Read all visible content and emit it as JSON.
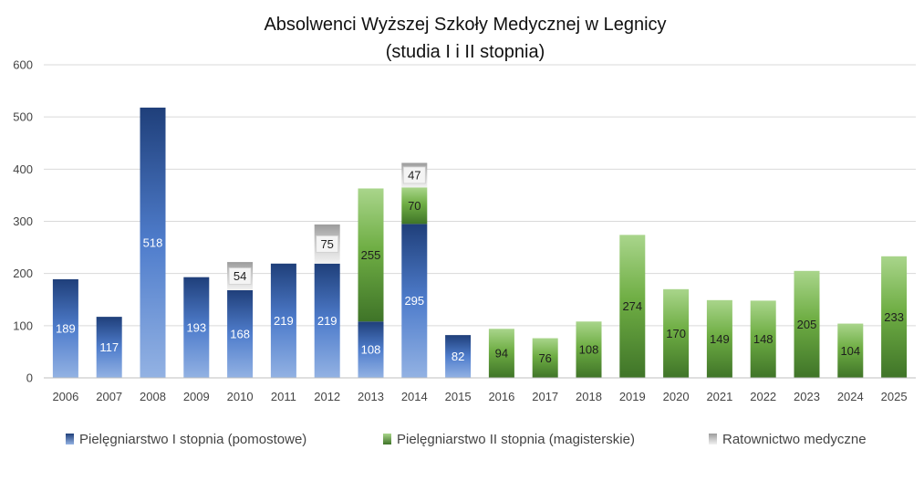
{
  "chart_data": {
    "type": "bar",
    "stacked": true,
    "title_line1": "Absolwenci Wyższej Szkoły Medycznej  w Legnicy",
    "title_line2": "(studia I i II stopnia)",
    "xlabel": "",
    "ylabel": "",
    "ylim": [
      0,
      600
    ],
    "yticks": [
      "0",
      "100",
      "200",
      "300",
      "400",
      "500",
      "600"
    ],
    "grid": true,
    "legend_position": "bottom",
    "categories": [
      "2006",
      "2007",
      "2008",
      "2009",
      "2010",
      "2011",
      "2012",
      "2013",
      "2014",
      "2015",
      "2016",
      "2017",
      "2018",
      "2019",
      "2020",
      "2021",
      "2022",
      "2023",
      "2024",
      "2025"
    ],
    "series": [
      {
        "name": "Pielęgniarstwo I stopnia (pomostowe)",
        "color": "#2e5aa7",
        "values": [
          189,
          117,
          518,
          193,
          168,
          219,
          219,
          108,
          295,
          82,
          0,
          0,
          0,
          0,
          0,
          0,
          0,
          0,
          0,
          0
        ],
        "labels": [
          "189",
          "117",
          "518",
          "193",
          "168",
          "219",
          "219",
          "108",
          "295",
          "82",
          "",
          "",
          "",
          "",
          "",
          "",
          "",
          "",
          "",
          ""
        ]
      },
      {
        "name": "Pielęgniarstwo II stopnia (magisterskie)",
        "color": "#5f9e3a",
        "values": [
          0,
          0,
          0,
          0,
          0,
          0,
          0,
          255,
          70,
          0,
          94,
          76,
          108,
          274,
          170,
          149,
          148,
          205,
          104,
          233
        ],
        "labels": [
          "",
          "",
          "",
          "",
          "",
          "",
          "",
          "255",
          "70",
          "",
          "94",
          "76",
          "108",
          "274",
          "170",
          "149",
          "148",
          "205",
          "104",
          "233"
        ]
      },
      {
        "name": "Ratownictwo medyczne",
        "color": "#a6a6a6",
        "values": [
          0,
          0,
          0,
          0,
          54,
          0,
          75,
          0,
          47,
          0,
          0,
          0,
          0,
          0,
          0,
          0,
          0,
          0,
          0,
          0
        ],
        "labels": [
          "",
          "",
          "",
          "",
          "54",
          "",
          "75",
          "",
          "47",
          "",
          "",
          "",
          "",
          "",
          "",
          "",
          "",
          "",
          "",
          ""
        ]
      }
    ]
  }
}
